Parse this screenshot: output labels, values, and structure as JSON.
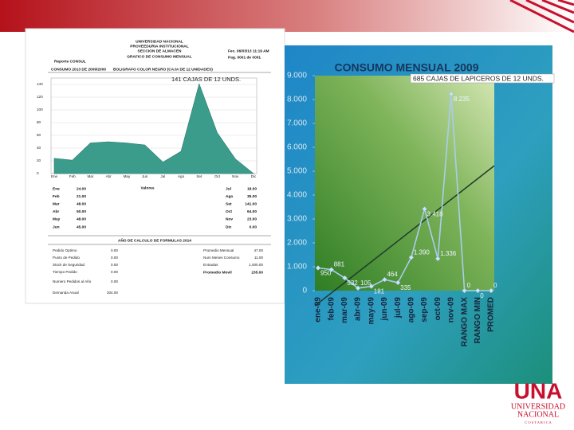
{
  "annotations": [
    "141 CAJAS DE 12 UNDS.",
    "685 CAJAS DE LAPICEROS DE 12 UNDS."
  ],
  "report": {
    "header": [
      "UNIVERSIDAD NACIONAL",
      "PROVEEDURIA INSTITUCIONAL",
      "SECCION DE ALMACEN",
      "GRAFICO DE CONSUMO MENSUAL"
    ],
    "meta": [
      "Reporte CONSUL",
      "Fec. 06/03/13 11:19 AM",
      "Pag. 0001 de 0001",
      "CONSUMO 2013 DE 2009/2000",
      "BOLIGRAFO COLOR NEGRO (CAJA DE 12 UNIDADES)"
    ],
    "table_title": "Valores",
    "formulas_title": "AÑO DE CALCULO DE FORMULAS 2014",
    "formulas": [
      [
        "Pedido Optimo",
        "0.00",
        "Promedio Mensual",
        "47.00"
      ],
      [
        "Punto de Pedido",
        "0.00",
        "Num Meses Consumo",
        "11.00"
      ],
      [
        "Stock de Seguridad",
        "0.00",
        "Entradas",
        "1,000.00"
      ],
      [
        "Tiempo Pedido",
        "0.00",
        "Promedio Movil",
        "235.00"
      ],
      [
        "Numero Pedidos al Año",
        "0.00"
      ],
      [
        "Demanda Anual",
        "204.00"
      ]
    ]
  },
  "logo": {
    "mark": "UNA",
    "lines": [
      "UNIVERSIDAD",
      "NACIONAL",
      "C O S T A   R I C A"
    ]
  },
  "chart_data": [
    {
      "type": "area",
      "categories": [
        "Ene",
        "Feb",
        "Mar",
        "Abr",
        "May",
        "Jun",
        "Jul",
        "Ago",
        "Set",
        "Oct",
        "Nov",
        "Dic"
      ],
      "values": [
        24,
        21,
        48,
        50,
        48,
        45,
        18,
        35,
        141,
        64,
        23,
        0
      ],
      "value_labels": [
        "24.00",
        "21.00",
        "48.00",
        "50.00",
        "48.00",
        "45.00",
        "18.00",
        "35.00",
        "141.00",
        "64.00",
        "23.00",
        "0.00"
      ],
      "color": "#3c9c8c",
      "ylim": [
        0,
        150
      ],
      "yticks": [
        0,
        20,
        40,
        60,
        80,
        100,
        120,
        140
      ],
      "grid": true
    },
    {
      "type": "line",
      "title": "CONSUMO MENSUAL 2009",
      "categories": [
        "ene-09",
        "feb-09",
        "mar-09",
        "abr-09",
        "may-09",
        "jun-09",
        "jul-09",
        "ago-09",
        "sep-09",
        "oct-09",
        "nov-09",
        "RANGO MAX",
        "RANGO MIN",
        "PROMED"
      ],
      "values": [
        950,
        881,
        532,
        105,
        181,
        464,
        335,
        1390,
        3418,
        1336,
        8235,
        0,
        0,
        0
      ],
      "value_labels": [
        "950",
        "881",
        "532",
        "105",
        "181",
        "464",
        "335",
        "1.390",
        "3.418",
        "1.336",
        "8.235",
        "0",
        "0",
        "0"
      ],
      "color": "#a9cdee",
      "trendline_color": "#1f3b2a",
      "ylim": [
        0,
        9000
      ],
      "yticks": [
        0,
        {
          "value": 1000,
          "label": "1.000"
        },
        {
          "value": 2000,
          "label": "2.000"
        },
        {
          "value": 3000,
          "label": "3.000"
        },
        {
          "value": 4000,
          "label": "4.000"
        },
        {
          "value": 5000,
          "label": "5.000"
        },
        {
          "value": 6000,
          "label": "6.000"
        },
        {
          "value": 7000,
          "label": "7.000"
        },
        {
          "value": 8000,
          "label": "8.000"
        },
        {
          "value": 9000,
          "label": "9.000"
        }
      ]
    }
  ]
}
